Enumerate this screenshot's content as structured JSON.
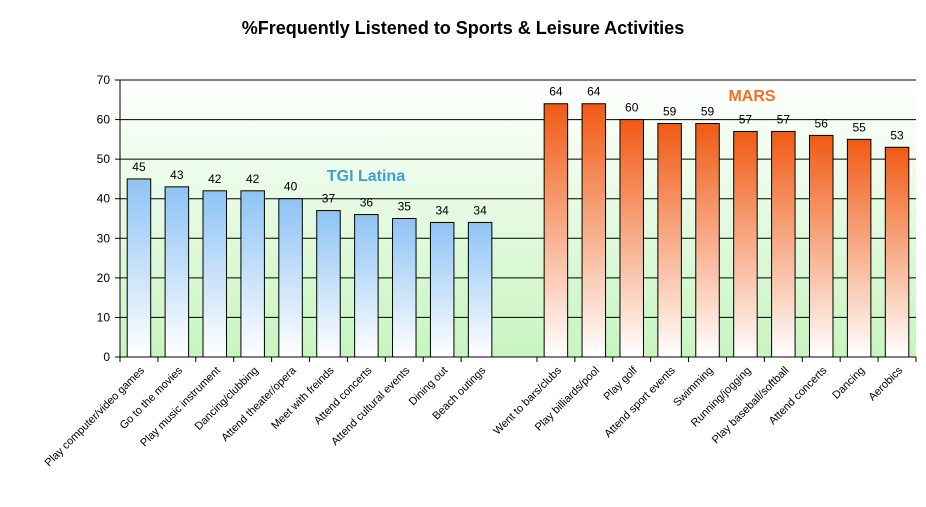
{
  "chart_data": {
    "type": "bar",
    "title": "%Frequently Listened to Sports & Leisure Activities",
    "xlabel": "",
    "ylabel": "",
    "ylim": [
      0,
      70
    ],
    "yticks": [
      0,
      10,
      20,
      30,
      40,
      50,
      60,
      70
    ],
    "grid": true,
    "series": [
      {
        "name": "TGI Latina",
        "color": "#4ea8d8",
        "bar_top_color": "#8ec3f5",
        "categories": [
          "Play computer/video games",
          "Go to the movies",
          "Play music instrument",
          "Dancing/clubbing",
          "Attend theater/opera",
          "Meet with freinds",
          "Attend concerts",
          "Attend cultural events",
          "Dining out",
          "Beach outings"
        ],
        "values": [
          45,
          43,
          42,
          42,
          40,
          37,
          36,
          35,
          34,
          34
        ]
      },
      {
        "name": "MARS",
        "color": "#f07020",
        "bar_top_color": "#f05a14",
        "categories": [
          "Went to bars/clubs",
          "Play billiards/pool",
          "Play golf",
          "Attend sport events",
          "Swimming",
          "Running/jogging",
          "Play baseball/softball",
          "Attend concerts",
          "Dancing",
          "Aerobics"
        ],
        "values": [
          64,
          64,
          60,
          59,
          59,
          57,
          57,
          56,
          55,
          53
        ]
      }
    ]
  }
}
